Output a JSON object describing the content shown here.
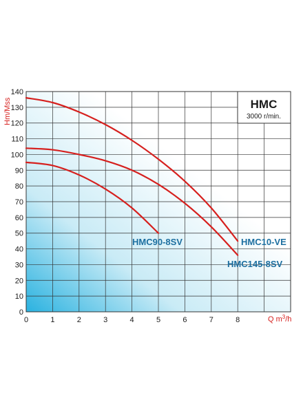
{
  "chart_data": {
    "type": "line",
    "title": "HMC",
    "subtitle": "3000 r/min.",
    "xlabel": "Q m³/h",
    "xlabel_main": "Q m",
    "xlabel_sup": "3",
    "xlabel_tail": "/h",
    "ylabel": "Hm/Mss",
    "xlim": [
      0,
      10
    ],
    "ylim": [
      0,
      140
    ],
    "x_ticks": [
      "0",
      "1",
      "2",
      "3",
      "4",
      "5",
      "6",
      "7",
      "8"
    ],
    "y_ticks": [
      "0",
      "10",
      "20",
      "30",
      "40",
      "50",
      "60",
      "70",
      "80",
      "90",
      "100",
      "110",
      "120",
      "130",
      "140"
    ],
    "grid": true,
    "series": [
      {
        "name": "HMC10-VE",
        "x": [
          0,
          1,
          2,
          3,
          4,
          5,
          6,
          7,
          8
        ],
        "y": [
          136,
          133,
          127,
          119,
          109,
          97,
          83,
          66,
          45
        ]
      },
      {
        "name": "HMC145-8SV",
        "x": [
          0,
          1,
          2,
          3,
          4,
          5,
          6,
          7,
          8
        ],
        "y": [
          104,
          103,
          100,
          96,
          90,
          81,
          69,
          54,
          36
        ]
      },
      {
        "name": "HMC90-8SV",
        "x": [
          0,
          1,
          2,
          3,
          4,
          5
        ],
        "y": [
          95,
          93,
          87,
          78,
          66,
          50
        ]
      }
    ],
    "colors": {
      "curve": "#d6201e",
      "label": "#1d6fa0",
      "grid": "#333333",
      "gradient_dark": "#2ab2e0",
      "gradient_light": "#ffffff"
    }
  }
}
